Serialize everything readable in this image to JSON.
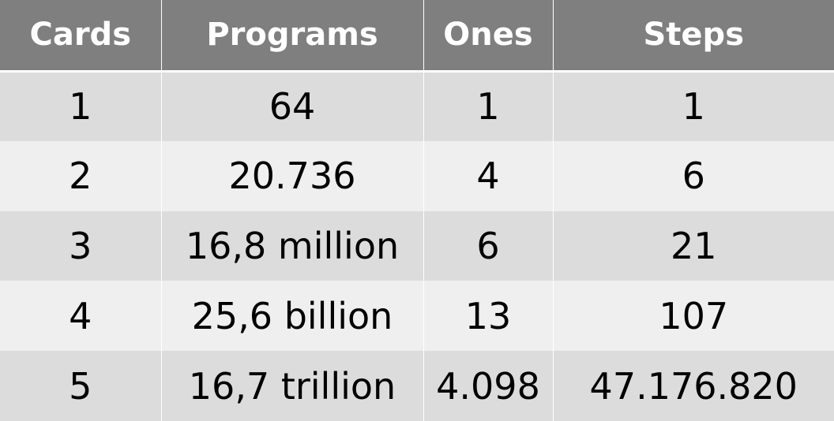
{
  "table": {
    "headers": [
      "Cards",
      "Programs",
      "Ones",
      "Steps"
    ],
    "rows": [
      [
        "1",
        "64",
        "1",
        "1"
      ],
      [
        "2",
        "20.736",
        "4",
        "6"
      ],
      [
        "3",
        "16,8 million",
        "6",
        "21"
      ],
      [
        "4",
        "25,6 billion",
        "13",
        "107"
      ],
      [
        "5",
        "16,7 trillion",
        "4.098",
        "47.176.820"
      ]
    ]
  },
  "colors": {
    "header_bg": "#7f7f7f",
    "header_text": "#ffffff",
    "row_band_dark": "#dcdcdc",
    "row_band_light": "#efefef"
  }
}
